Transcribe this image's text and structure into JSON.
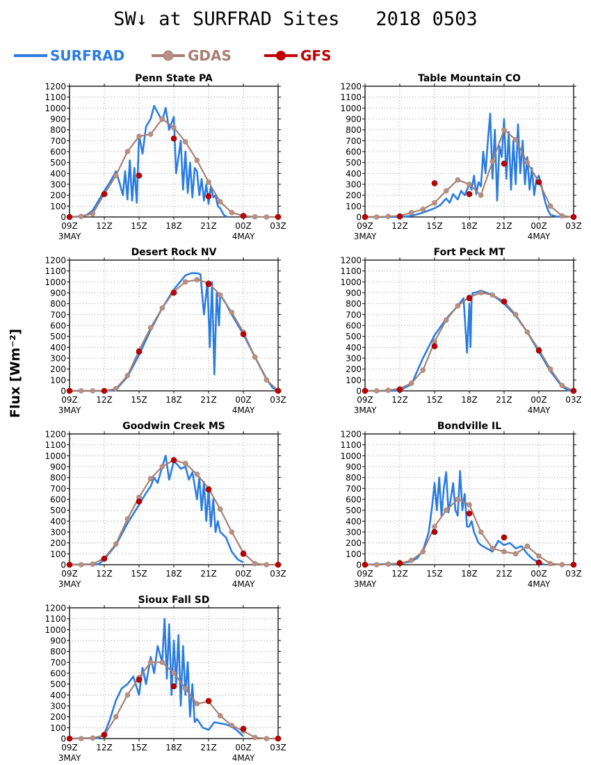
{
  "title_left": "SW↓ at SURFRAD Sites",
  "title_right": "2018 0503",
  "ylabel": "Flux [Wm⁻²]",
  "legend": [
    {
      "name": "SURFRAD",
      "color": "#2a7ce0"
    },
    {
      "name": "GDAS",
      "color": "#a87f72"
    },
    {
      "name": "GFS",
      "color": "#c00000"
    }
  ],
  "colors": {
    "surfrad": "#2a7ce0",
    "gdas": "#a87f72",
    "gdas_marker": "#b89184",
    "gfs": "#c00000",
    "grid": "#9a9a9a"
  },
  "axes": {
    "x_range_hours": [
      9,
      27
    ],
    "x_ticks": [
      {
        "h": 9,
        "label": "09Z",
        "date": "3MAY"
      },
      {
        "h": 12,
        "label": "12Z",
        "date": ""
      },
      {
        "h": 15,
        "label": "15Z",
        "date": ""
      },
      {
        "h": 18,
        "label": "18Z",
        "date": ""
      },
      {
        "h": 21,
        "label": "21Z",
        "date": ""
      },
      {
        "h": 24,
        "label": "00Z",
        "date": "4MAY"
      },
      {
        "h": 27,
        "label": "03Z",
        "date": ""
      }
    ],
    "y_range": [
      0,
      1200
    ],
    "y_ticks": [
      0,
      100,
      200,
      300,
      400,
      500,
      600,
      700,
      800,
      900,
      1000,
      1100,
      1200
    ],
    "grid": "dotted"
  },
  "chart_data": [
    {
      "type": "line",
      "title": "Penn State PA",
      "series": [
        {
          "name": "SURFRAD",
          "x": [
            9,
            10,
            10.5,
            11,
            11.5,
            12,
            12.5,
            13,
            13.3,
            13.6,
            13.8,
            14,
            14.2,
            14.4,
            14.6,
            14.8,
            15,
            15.3,
            15.6,
            16,
            16.3,
            16.6,
            17,
            17.3,
            17.6,
            18,
            18.2,
            18.4,
            18.6,
            18.8,
            19,
            19.2,
            19.4,
            19.6,
            19.8,
            20,
            20.2,
            20.4,
            20.6,
            20.8,
            21,
            21.2,
            21.4,
            21.6,
            21.8,
            22,
            22.3,
            22.6
          ],
          "y": [
            0,
            5,
            20,
            60,
            150,
            240,
            320,
            420,
            320,
            200,
            420,
            160,
            520,
            150,
            450,
            130,
            750,
            580,
            830,
            900,
            1020,
            960,
            880,
            1000,
            800,
            920,
            400,
            550,
            700,
            250,
            600,
            220,
            500,
            180,
            450,
            420,
            200,
            350,
            150,
            300,
            120,
            280,
            180,
            200,
            100,
            80,
            20,
            0
          ]
        },
        {
          "name": "GDAS",
          "x": [
            9,
            10,
            11,
            12,
            13,
            14,
            15,
            16,
            17,
            18,
            19,
            20,
            21,
            22,
            23,
            24,
            25,
            26,
            27
          ],
          "y": [
            0,
            5,
            30,
            210,
            380,
            600,
            740,
            760,
            900,
            820,
            690,
            520,
            320,
            140,
            40,
            10,
            2,
            0,
            0
          ]
        },
        {
          "name": "GFS",
          "x": [
            9,
            12,
            15,
            18,
            21,
            24,
            27
          ],
          "y": [
            0,
            210,
            380,
            720,
            190,
            10,
            0
          ]
        }
      ]
    },
    {
      "type": "line",
      "title": "Table Mountain CO",
      "series": [
        {
          "name": "SURFRAD",
          "x": [
            9,
            12,
            13,
            14,
            15,
            15.5,
            16,
            16.3,
            16.6,
            17,
            17.3,
            17.6,
            18,
            18.2,
            18.4,
            18.6,
            18.8,
            19,
            19.2,
            19.4,
            19.6,
            19.8,
            20,
            20.2,
            20.4,
            20.6,
            20.8,
            21,
            21.2,
            21.4,
            21.6,
            21.8,
            22,
            22.2,
            22.4,
            22.6,
            22.8,
            23,
            23.2,
            23.4,
            23.6,
            23.8,
            24,
            24.2,
            24.4,
            24.6,
            24.8,
            25,
            25.5,
            26
          ],
          "y": [
            0,
            0,
            10,
            40,
            80,
            110,
            170,
            130,
            210,
            160,
            240,
            200,
            300,
            250,
            380,
            210,
            320,
            280,
            600,
            400,
            700,
            950,
            350,
            800,
            150,
            650,
            550,
            900,
            350,
            780,
            250,
            700,
            300,
            850,
            400,
            700,
            300,
            550,
            250,
            450,
            200,
            350,
            380,
            300,
            200,
            120,
            60,
            20,
            5,
            0
          ]
        },
        {
          "name": "GDAS",
          "x": [
            9,
            10,
            11,
            12,
            13,
            14,
            15,
            16,
            17,
            18,
            19,
            20,
            21,
            22,
            23,
            24,
            25,
            26,
            27
          ],
          "y": [
            0,
            0,
            5,
            10,
            40,
            70,
            130,
            240,
            340,
            300,
            200,
            510,
            800,
            710,
            500,
            320,
            100,
            10,
            0
          ]
        },
        {
          "name": "GFS",
          "x": [
            9,
            12,
            15,
            18,
            21,
            24,
            27
          ],
          "y": [
            0,
            5,
            310,
            210,
            490,
            320,
            0
          ]
        }
      ]
    },
    {
      "type": "line",
      "title": "Desert Rock NV",
      "series": [
        {
          "name": "SURFRAD",
          "x": [
            9,
            12,
            13,
            14,
            15,
            16,
            17,
            18,
            19,
            19.5,
            20,
            20.3,
            20.6,
            20.9,
            21.1,
            21.3,
            21.5,
            21.7,
            21.9,
            22,
            22.2,
            22.5,
            23,
            24,
            25,
            26,
            26.5,
            27
          ],
          "y": [
            0,
            0,
            10,
            130,
            330,
            560,
            760,
            930,
            1060,
            1080,
            1080,
            1070,
            700,
            1000,
            400,
            1000,
            150,
            900,
            600,
            880,
            850,
            800,
            700,
            520,
            310,
            110,
            30,
            0
          ]
        },
        {
          "name": "GDAS",
          "x": [
            9,
            10,
            11,
            12,
            13,
            14,
            15,
            16,
            17,
            18,
            19,
            20,
            21,
            22,
            23,
            24,
            25,
            26,
            27
          ],
          "y": [
            0,
            0,
            0,
            0,
            20,
            140,
            370,
            580,
            760,
            910,
            1000,
            1020,
            990,
            880,
            720,
            540,
            310,
            100,
            0
          ]
        },
        {
          "name": "GFS",
          "x": [
            9,
            12,
            15,
            18,
            21,
            24,
            27
          ],
          "y": [
            0,
            0,
            360,
            900,
            980,
            520,
            0
          ]
        }
      ]
    },
    {
      "type": "line",
      "title": "Fort Peck MT",
      "series": [
        {
          "name": "SURFRAD",
          "x": [
            9,
            11.5,
            12,
            13,
            13.5,
            14,
            15,
            16,
            17,
            17.5,
            17.8,
            18,
            18.1,
            18.2,
            18.3,
            18.5,
            19,
            20,
            21,
            22,
            23,
            24,
            25,
            26,
            26.5,
            27
          ],
          "y": [
            0,
            0,
            5,
            60,
            180,
            300,
            510,
            660,
            780,
            850,
            350,
            800,
            400,
            850,
            900,
            900,
            920,
            880,
            800,
            690,
            540,
            360,
            180,
            40,
            5,
            0
          ]
        },
        {
          "name": "GDAS",
          "x": [
            9,
            10,
            11,
            12,
            13,
            14,
            15,
            16,
            17,
            18,
            19,
            20,
            21,
            22,
            23,
            24,
            25,
            26,
            27
          ],
          "y": [
            0,
            0,
            5,
            20,
            70,
            190,
            450,
            650,
            780,
            860,
            900,
            880,
            820,
            700,
            540,
            380,
            200,
            50,
            0
          ]
        },
        {
          "name": "GFS",
          "x": [
            9,
            12,
            15,
            18,
            21,
            24,
            27
          ],
          "y": [
            0,
            10,
            410,
            850,
            820,
            370,
            0
          ]
        }
      ]
    },
    {
      "type": "line",
      "title": "Goodwin Creek MS",
      "series": [
        {
          "name": "SURFRAD",
          "x": [
            9,
            11.5,
            12,
            13,
            14,
            15,
            15.5,
            16,
            16.3,
            16.6,
            17,
            17.3,
            17.6,
            18,
            18.3,
            18.6,
            19,
            19.3,
            19.6,
            20,
            20.2,
            20.4,
            20.6,
            20.8,
            21,
            21.2,
            21.4,
            21.6,
            21.8,
            22,
            22.5,
            23,
            23.5,
            24
          ],
          "y": [
            0,
            5,
            50,
            180,
            380,
            550,
            640,
            720,
            800,
            750,
            900,
            1000,
            780,
            950,
            920,
            880,
            900,
            780,
            850,
            600,
            800,
            500,
            760,
            400,
            700,
            350,
            600,
            300,
            400,
            300,
            250,
            120,
            50,
            20
          ]
        },
        {
          "name": "GDAS",
          "x": [
            9,
            10,
            11,
            12,
            13,
            14,
            15,
            16,
            17,
            18,
            19,
            20,
            21,
            22,
            23,
            24,
            25,
            26,
            27
          ],
          "y": [
            0,
            0,
            5,
            60,
            190,
            420,
            620,
            790,
            900,
            960,
            930,
            830,
            700,
            510,
            300,
            110,
            10,
            0,
            0
          ]
        },
        {
          "name": "GFS",
          "x": [
            9,
            12,
            15,
            18,
            21,
            24,
            27
          ],
          "y": [
            0,
            55,
            580,
            960,
            690,
            100,
            0
          ]
        }
      ]
    },
    {
      "type": "line",
      "title": "Bondville IL",
      "series": [
        {
          "name": "SURFRAD",
          "x": [
            9,
            12,
            13,
            13.5,
            14,
            14.5,
            14.8,
            15,
            15.2,
            15.4,
            15.6,
            15.8,
            16,
            16.2,
            16.4,
            16.6,
            16.8,
            17,
            17.2,
            17.4,
            17.6,
            17.8,
            18,
            18.2,
            18.4,
            18.6,
            18.8,
            19,
            19.5,
            20,
            20.5,
            21,
            21.5,
            22,
            22.5,
            23,
            23.5,
            24,
            24.5
          ],
          "y": [
            0,
            10,
            30,
            60,
            130,
            300,
            550,
            750,
            500,
            800,
            450,
            700,
            850,
            480,
            600,
            750,
            500,
            450,
            860,
            500,
            650,
            350,
            350,
            400,
            300,
            250,
            200,
            180,
            150,
            120,
            220,
            180,
            200,
            150,
            170,
            100,
            50,
            20,
            0
          ]
        },
        {
          "name": "GDAS",
          "x": [
            9,
            10,
            11,
            12,
            13,
            14,
            15,
            16,
            17,
            18,
            19,
            20,
            21,
            22,
            23,
            24,
            25,
            26,
            27
          ],
          "y": [
            0,
            0,
            5,
            10,
            40,
            120,
            350,
            500,
            600,
            550,
            300,
            150,
            120,
            100,
            170,
            80,
            10,
            0,
            0
          ]
        },
        {
          "name": "GFS",
          "x": [
            9,
            12,
            15,
            18,
            21,
            24,
            27
          ],
          "y": [
            0,
            15,
            300,
            470,
            250,
            20,
            0
          ]
        }
      ]
    },
    {
      "type": "line",
      "title": "Sioux Fall SD",
      "series": [
        {
          "name": "SURFRAD",
          "x": [
            9,
            11.5,
            12,
            12.5,
            13,
            13.5,
            14,
            14.5,
            15,
            15.3,
            15.6,
            16,
            16.3,
            16.6,
            17,
            17.2,
            17.4,
            17.6,
            17.8,
            18,
            18.2,
            18.4,
            18.6,
            18.8,
            19,
            19.2,
            19.4,
            19.6,
            19.8,
            20,
            20.5,
            21,
            21.5,
            22,
            22.5,
            23,
            23.5,
            24
          ],
          "y": [
            0,
            5,
            40,
            180,
            350,
            460,
            500,
            570,
            400,
            650,
            500,
            750,
            600,
            850,
            700,
            1100,
            550,
            1050,
            400,
            900,
            500,
            950,
            300,
            850,
            400,
            700,
            200,
            500,
            150,
            180,
            100,
            80,
            150,
            140,
            130,
            110,
            70,
            20
          ]
        },
        {
          "name": "GDAS",
          "x": [
            9,
            10,
            11,
            12,
            13,
            14,
            15,
            16,
            17,
            18,
            19,
            20,
            21,
            22,
            23,
            24,
            25,
            26,
            27
          ],
          "y": [
            0,
            0,
            5,
            30,
            200,
            400,
            560,
            700,
            700,
            600,
            460,
            320,
            340,
            210,
            120,
            70,
            10,
            0,
            0
          ]
        },
        {
          "name": "GFS",
          "x": [
            9,
            12,
            15,
            18,
            21,
            24,
            27
          ],
          "y": [
            0,
            35,
            540,
            480,
            345,
            90,
            0
          ]
        }
      ]
    }
  ]
}
